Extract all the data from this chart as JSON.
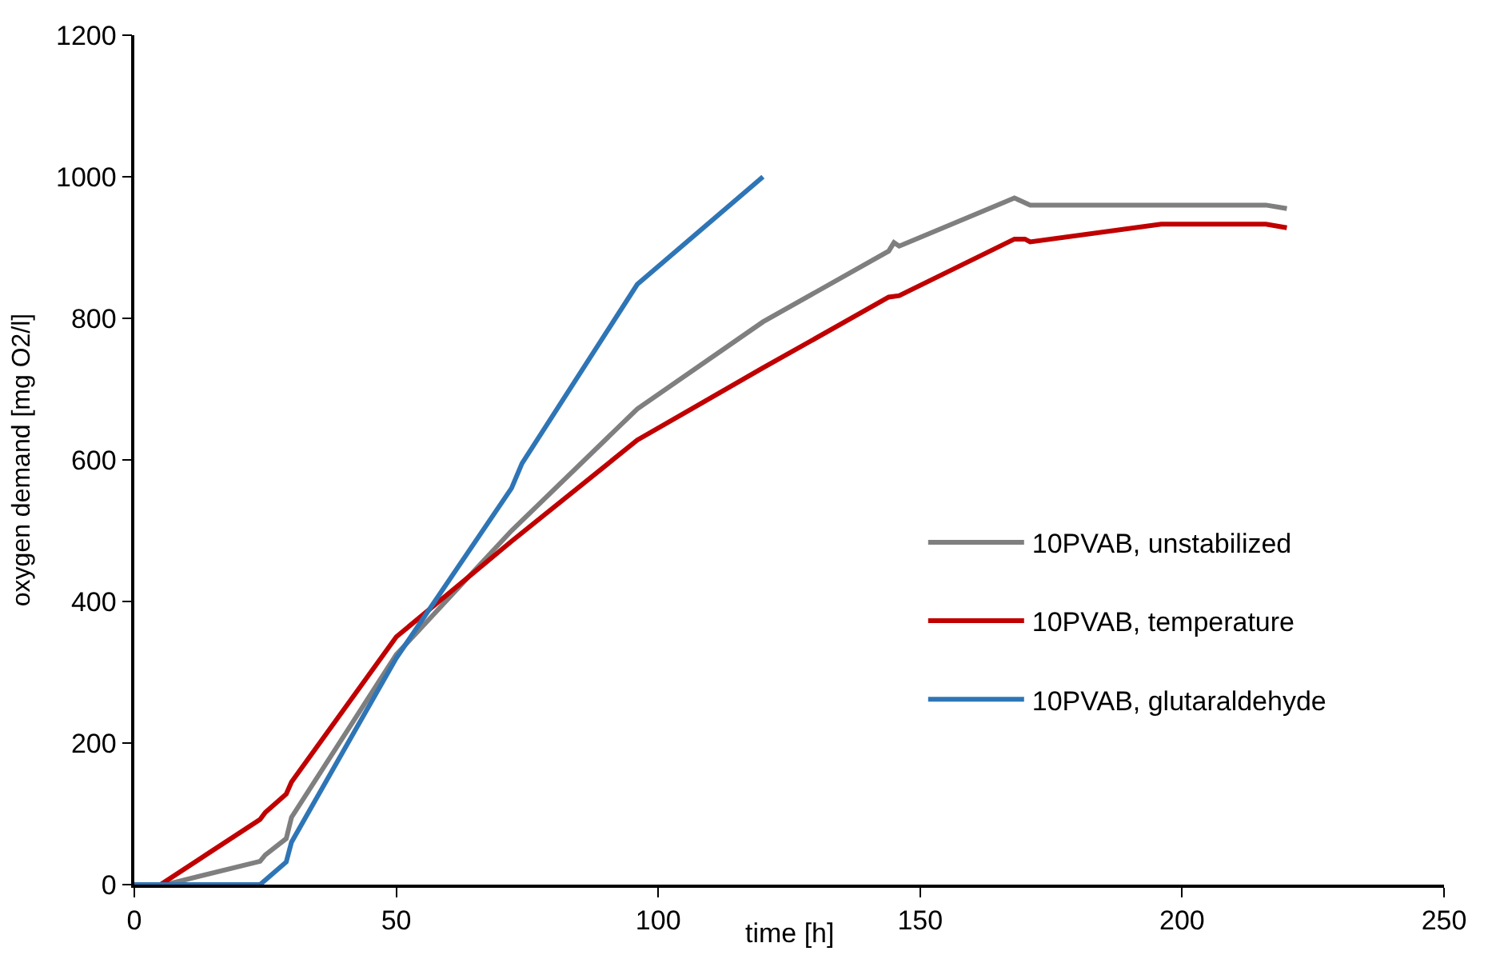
{
  "chart_data": {
    "type": "line",
    "xlabel": "time [h]",
    "ylabel": "oxygen demand [mg O2/l]",
    "xlim": [
      0,
      250
    ],
    "xticks": [
      0,
      50,
      100,
      150,
      200,
      250
    ],
    "ylim": [
      0,
      1200
    ],
    "yticks": [
      0,
      200,
      400,
      600,
      800,
      1000,
      1200
    ],
    "legend": "right",
    "marker": "none",
    "line_style": "solid",
    "series": [
      {
        "name": "10PVAB, unstabilized",
        "color": "#7f7f7f",
        "x": [
          0,
          6,
          24,
          25,
          29,
          30,
          50,
          72,
          96,
          120,
          144,
          145,
          146,
          147,
          168,
          171,
          216,
          220
        ],
        "values": [
          0,
          0,
          33,
          42,
          65,
          95,
          325,
          500,
          672,
          795,
          895,
          907,
          902,
          905,
          970,
          960,
          960,
          955
        ]
      },
      {
        "name": "10PVAB, temperature",
        "color": "#c00000",
        "x": [
          0,
          5,
          24,
          25,
          29,
          30,
          50,
          72,
          96,
          120,
          144,
          146,
          168,
          170,
          171,
          196,
          216,
          220
        ],
        "values": [
          0,
          0,
          92,
          102,
          128,
          145,
          350,
          485,
          628,
          730,
          830,
          832,
          912,
          912,
          908,
          933,
          933,
          928
        ]
      },
      {
        "name": "10PVAB, glutaraldehyde",
        "color": "#2e75b6",
        "x": [
          0,
          24,
          29,
          30,
          50,
          72,
          74,
          96,
          120
        ],
        "values": [
          0,
          0,
          32,
          60,
          320,
          560,
          595,
          848,
          1000
        ]
      }
    ]
  }
}
